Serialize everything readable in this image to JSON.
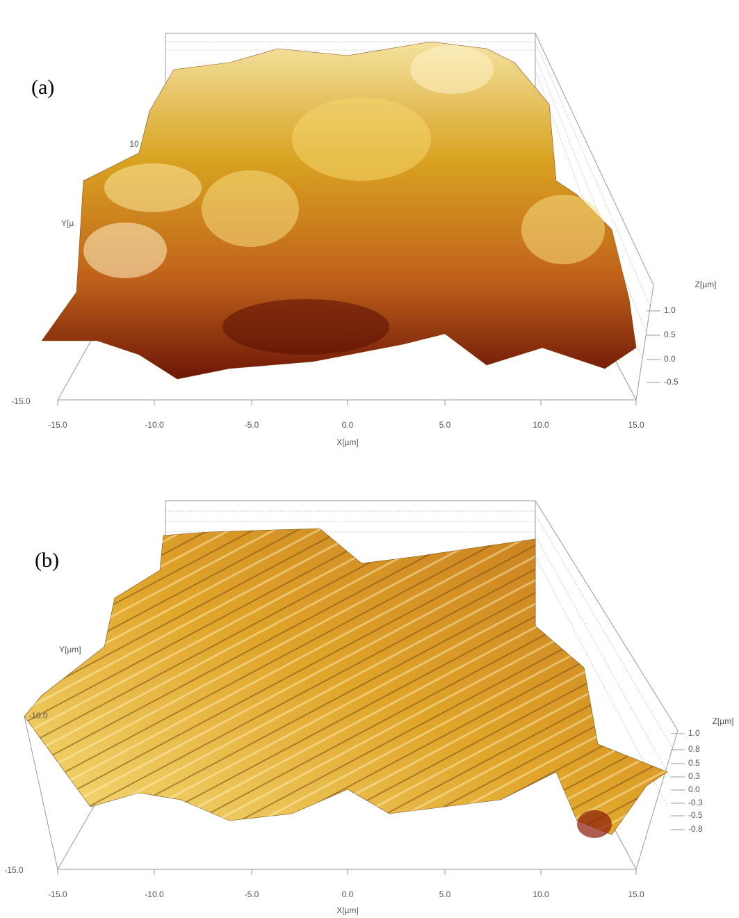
{
  "panels": [
    {
      "label": "(a)",
      "x_axis": {
        "label": "X[µm]",
        "ticks": [
          "-15.0",
          "-10.0",
          "-5.0",
          "0.0",
          "5.0",
          "10.0",
          "15.0"
        ]
      },
      "y_axis": {
        "label": "Y[µ",
        "ticks": [
          "-15.0",
          "10"
        ]
      },
      "z_axis": {
        "label": "Z[µm]",
        "ticks": [
          "1.0",
          "0.5",
          "0.0",
          "-0.5"
        ]
      }
    },
    {
      "label": "(b)",
      "x_axis": {
        "label": "X[µm]",
        "ticks": [
          "-15.0",
          "-10.0",
          "-5.0",
          "0.0",
          "5.0",
          "10.0",
          "15.0"
        ]
      },
      "y_axis": {
        "label": "Y[µm]",
        "ticks": [
          "-10.0",
          "-15.0"
        ]
      },
      "z_axis": {
        "label": "Z[µm]",
        "ticks": [
          "1.0",
          "0.8",
          "0.5",
          "0.3",
          "0.0",
          "-0.3",
          "-0.5",
          "-0.8"
        ]
      }
    }
  ]
}
